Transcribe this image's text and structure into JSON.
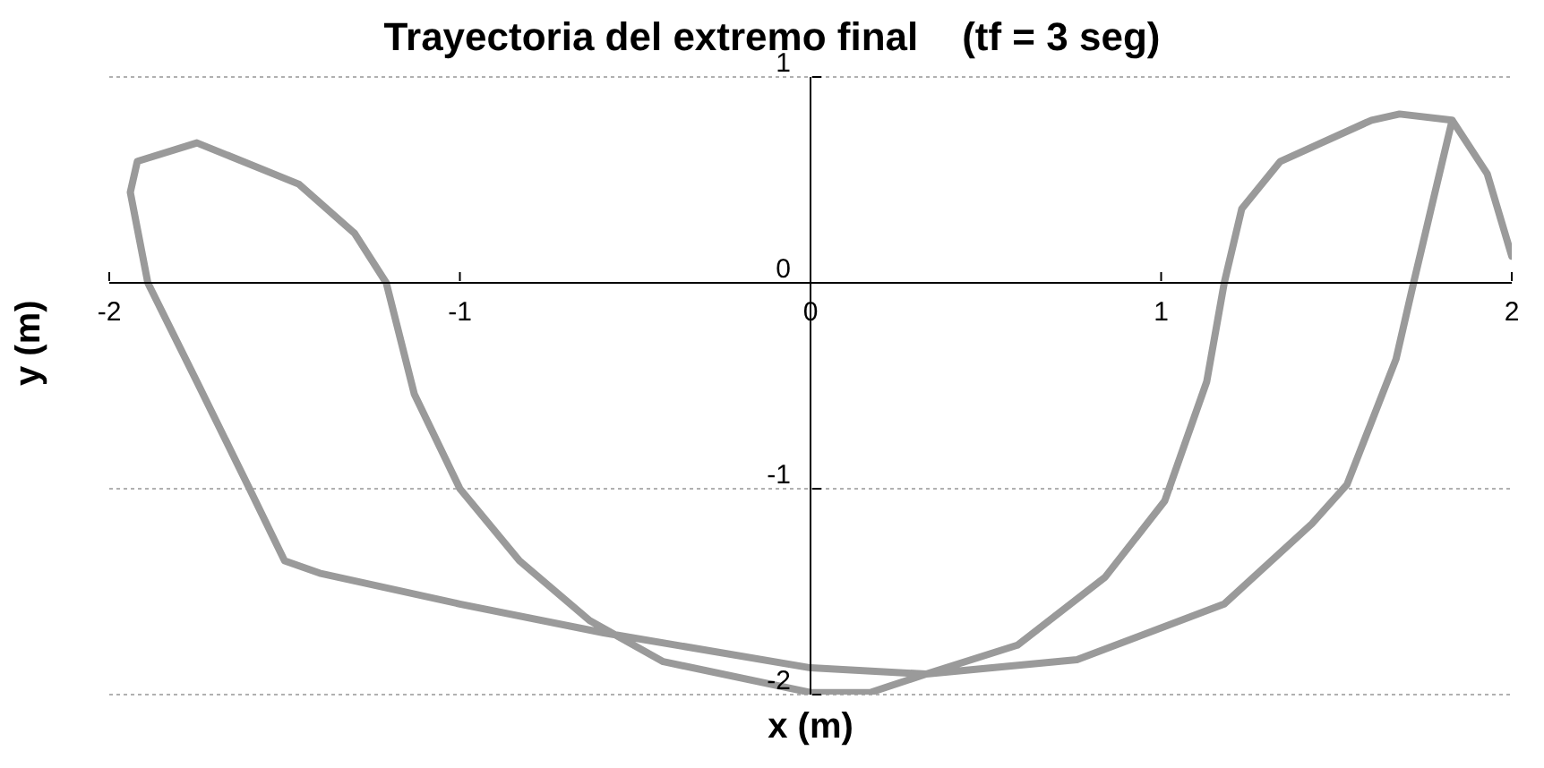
{
  "chart_data": {
    "type": "line",
    "title": "Trayectoria del extremo final    (tf = 3 seg)",
    "xlabel": "x (m)",
    "ylabel": "y (m)",
    "x": [
      1.83,
      1.77,
      1.72,
      1.67,
      1.53,
      1.43,
      1.18,
      0.76,
      0.33,
      0,
      -0.59,
      -1.0,
      -1.4,
      -1.5,
      -1.6,
      -1.75,
      -1.89,
      -1.94,
      -1.92,
      -1.75,
      -1.46,
      -1.3,
      -1.21,
      -1.13,
      -1.0,
      -0.83,
      -0.63,
      -0.42,
      0,
      0.17,
      0.33,
      0.59,
      0.84,
      1.01,
      1.13,
      1.18,
      1.23,
      1.34,
      1.6,
      1.68,
      1.83,
      1.93,
      2.0
    ],
    "series": [
      {
        "color": "#9a9a9a",
        "values": [
          0.79,
          0.36,
          0,
          -0.37,
          -0.98,
          -1.17,
          -1.56,
          -1.83,
          -1.9,
          -1.87,
          -1.7,
          -1.56,
          -1.41,
          -1.35,
          -1.0,
          -0.48,
          0,
          0.44,
          0.59,
          0.68,
          0.48,
          0.24,
          0,
          -0.54,
          -1.0,
          -1.35,
          -1.64,
          -1.84,
          -1.99,
          -1.99,
          -1.9,
          -1.76,
          -1.43,
          -1.06,
          -0.48,
          0,
          0.36,
          0.59,
          0.79,
          0.82,
          0.79,
          0.53,
          0.13
        ]
      }
    ],
    "xlim": [
      -2,
      2
    ],
    "ylim": [
      -2,
      1
    ],
    "xticks": [
      -2,
      -1,
      0,
      1,
      2
    ],
    "yticks": [
      -2,
      -1,
      0,
      1
    ],
    "grid": "y",
    "marker": "none",
    "line_style": "solid",
    "legend": false
  }
}
